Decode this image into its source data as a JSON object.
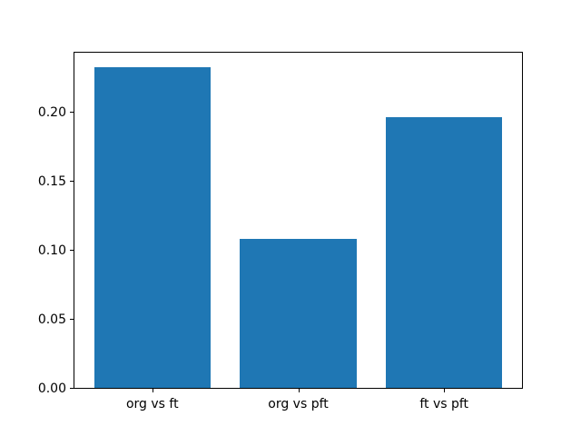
{
  "figure": {
    "background": "#ffffff"
  },
  "chart_data": {
    "type": "bar",
    "title": "",
    "xlabel": "",
    "ylabel": "",
    "categories": [
      "org vs ft",
      "org vs pft",
      "ft vs pft"
    ],
    "values": [
      0.232,
      0.108,
      0.196
    ],
    "bar_color": "#1f77b4",
    "bar_width_ratio": 0.8,
    "ylim": [
      0,
      0.244
    ],
    "yticks": [
      0.0,
      0.05,
      0.1,
      0.15,
      0.2
    ],
    "ytick_labels": [
      "0.00",
      "0.05",
      "0.10",
      "0.15",
      "0.20"
    ],
    "grid": false,
    "legend": "none"
  }
}
